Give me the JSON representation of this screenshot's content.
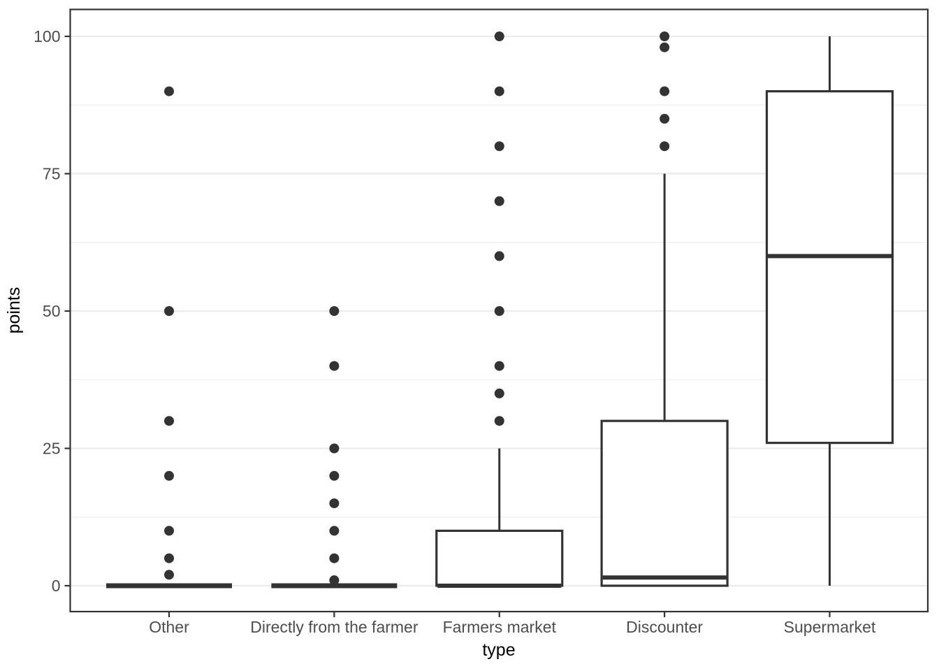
{
  "chart_data": {
    "type": "boxplot",
    "title": "",
    "xlabel": "type",
    "ylabel": "points",
    "ylim": [
      0,
      100
    ],
    "yticks": [
      0,
      25,
      50,
      75,
      100
    ],
    "minor_gridlines": [
      12.5,
      37.5,
      62.5,
      87.5
    ],
    "grid": "on",
    "legend": "none",
    "categories": [
      "Other",
      "Directly from the farmer",
      "Farmers market",
      "Discounter",
      "Supermarket"
    ],
    "boxes": [
      {
        "category": "Other",
        "min": 0,
        "q1": 0,
        "median": 0,
        "q3": 0,
        "max": 0,
        "outliers": [
          2,
          5,
          10,
          20,
          30,
          50,
          90
        ]
      },
      {
        "category": "Directly from the farmer",
        "min": 0,
        "q1": 0,
        "median": 0,
        "q3": 0,
        "max": 0,
        "outliers": [
          1,
          5,
          10,
          15,
          20,
          25,
          40,
          50
        ]
      },
      {
        "category": "Farmers market",
        "min": 0,
        "q1": 0,
        "median": 0,
        "q3": 10,
        "max": 25,
        "outliers": [
          30,
          35,
          40,
          50,
          60,
          70,
          80,
          90,
          100
        ]
      },
      {
        "category": "Discounter",
        "min": 0,
        "q1": 0,
        "median": 1.5,
        "q3": 30,
        "max": 75,
        "outliers": [
          80,
          85,
          90,
          98,
          100
        ]
      },
      {
        "category": "Supermarket",
        "min": 0,
        "q1": 26,
        "median": 60,
        "q3": 90,
        "max": 100,
        "outliers": []
      }
    ],
    "colors": {
      "stroke": "#333333",
      "outlier_fill": "#333333",
      "panel_border": "#333333",
      "grid_major": "#ebebeb",
      "grid_minor": "#efefef",
      "tick_label_text": "#4d4d4d",
      "axis_title_text": "#000000",
      "background": "#ffffff"
    }
  }
}
